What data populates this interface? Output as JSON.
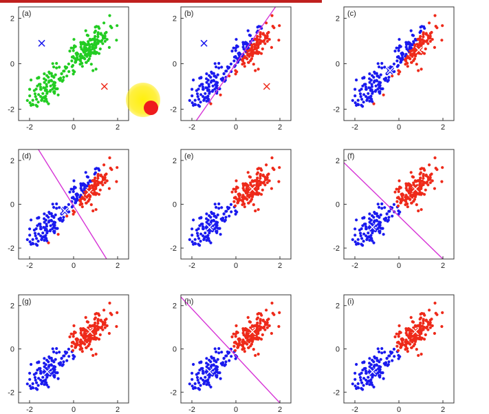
{
  "colors": {
    "cluster_unassigned": "#22cc22",
    "cluster_1": "#1a1aee",
    "cluster_2": "#ee2a1a",
    "boundary": "#d633d6",
    "axis": "#333333"
  },
  "chart_data": [
    {
      "type": "scatter",
      "label": "(a)",
      "xlim": [
        -2.5,
        2.5
      ],
      "ylim": [
        -2.5,
        2.5
      ],
      "xticks": [
        "-2",
        "0",
        "2"
      ],
      "yticks": [
        "2",
        "0",
        "-2"
      ],
      "assignment": "none",
      "centroids": [
        [
          -1.45,
          0.9
        ],
        [
          1.4,
          -1.0
        ]
      ],
      "boundary": null
    },
    {
      "type": "scatter",
      "label": "(b)",
      "xlim": [
        -2.5,
        2.5
      ],
      "ylim": [
        -2.5,
        2.5
      ],
      "xticks": [
        "-2",
        "0",
        "2"
      ],
      "yticks": [
        "2",
        "0",
        "-2"
      ],
      "assignment": "line",
      "centroids": [
        [
          -1.45,
          0.9
        ],
        [
          1.4,
          -1.0
        ]
      ],
      "boundary": [
        [
          -1.8,
          -2.5
        ],
        [
          1.8,
          2.5
        ]
      ]
    },
    {
      "type": "scatter",
      "label": "(c)",
      "xlim": [
        -2.5,
        2.5
      ],
      "ylim": [
        -2.5,
        2.5
      ],
      "xticks": [
        "-2",
        "0",
        "2"
      ],
      "yticks": [
        "2",
        "0",
        "-2"
      ],
      "assignment": "line",
      "centroids": [
        [
          -0.4,
          -0.3
        ],
        [
          0.9,
          0.6
        ]
      ],
      "boundary": null
    },
    {
      "type": "scatter",
      "label": "(d)",
      "xlim": [
        -2.5,
        2.5
      ],
      "ylim": [
        -2.5,
        2.5
      ],
      "xticks": [
        "-2",
        "0",
        "2"
      ],
      "yticks": [
        "2",
        "0",
        "-2"
      ],
      "assignment": "line",
      "centroids": [
        [
          -0.4,
          -0.3
        ],
        [
          0.7,
          0.55
        ]
      ],
      "boundary": [
        [
          -1.6,
          2.5
        ],
        [
          1.5,
          -2.5
        ]
      ]
    },
    {
      "type": "scatter",
      "label": "(e)",
      "xlim": [
        -2.5,
        2.5
      ],
      "ylim": [
        -2.5,
        2.5
      ],
      "xticks": [
        "-2",
        "0",
        "2"
      ],
      "yticks": [
        "2",
        "0",
        "-2"
      ],
      "assignment": "line2",
      "centroids": [
        [
          -1.2,
          -1.05
        ],
        [
          0.75,
          0.7
        ]
      ],
      "boundary": null
    },
    {
      "type": "scatter",
      "label": "(f)",
      "xlim": [
        -2.5,
        2.5
      ],
      "ylim": [
        -2.5,
        2.5
      ],
      "xticks": [
        "-2",
        "0",
        "2"
      ],
      "yticks": [
        "2",
        "0",
        "-2"
      ],
      "assignment": "line2",
      "centroids": [
        [
          -1.2,
          -1.05
        ],
        [
          0.75,
          0.7
        ]
      ],
      "boundary": [
        [
          -2.5,
          1.9
        ],
        [
          2.0,
          -2.5
        ]
      ]
    },
    {
      "type": "scatter",
      "label": "(g)",
      "xlim": [
        -2.5,
        2.5
      ],
      "ylim": [
        -2.5,
        2.5
      ],
      "xticks": [
        "-2",
        "0",
        "2"
      ],
      "yticks": [
        "2",
        "0",
        "-2"
      ],
      "assignment": "line2",
      "centroids": [
        [
          -1.2,
          -1.05
        ],
        [
          0.75,
          0.8
        ]
      ],
      "boundary": null
    },
    {
      "type": "scatter",
      "label": "(h)",
      "xlim": [
        -2.5,
        2.5
      ],
      "ylim": [
        -2.5,
        2.5
      ],
      "xticks": [
        "-2",
        "0",
        "2"
      ],
      "yticks": [
        "2",
        "0",
        "-2"
      ],
      "assignment": "line2",
      "centroids": [
        [
          -1.2,
          -1.05
        ],
        [
          0.75,
          0.8
        ]
      ],
      "boundary": [
        [
          -2.5,
          2.4
        ],
        [
          2.0,
          -2.5
        ]
      ]
    },
    {
      "type": "scatter",
      "label": "(i)",
      "xlim": [
        -2.5,
        2.5
      ],
      "ylim": [
        -2.5,
        2.5
      ],
      "xticks": [
        "-2",
        "0",
        "2"
      ],
      "yticks": [
        "2",
        "0",
        "-2"
      ],
      "assignment": "line2",
      "centroids": [
        [
          -1.2,
          -1.05
        ],
        [
          0.75,
          0.8
        ]
      ],
      "boundary": null
    }
  ]
}
